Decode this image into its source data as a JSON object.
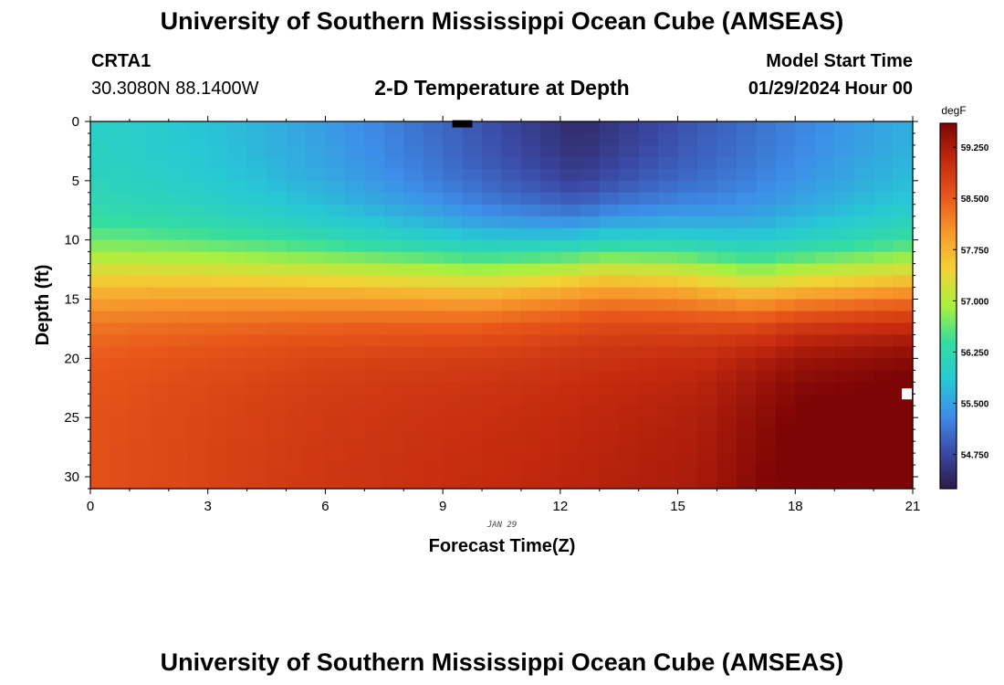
{
  "page": {
    "top_title": "University of Southern Mississippi Ocean Cube (AMSEAS)",
    "bottom_title": "University of Southern Mississippi Ocean Cube (AMSEAS)",
    "station_id": "CRTA1",
    "station_coords": "30.3080N  88.1400W",
    "model_start_label": "Model Start Time",
    "model_start_value": "01/29/2024 Hour 00"
  },
  "chart_data": {
    "type": "heatmap",
    "title": "2-D Temperature at Depth",
    "xlabel": "Forecast Time(Z)",
    "ylabel": "Depth (ft)",
    "xlim": [
      0,
      21
    ],
    "ylim": [
      0,
      31
    ],
    "x_ticks": [
      0,
      3,
      6,
      9,
      12,
      15,
      18,
      21
    ],
    "y_ticks": [
      0,
      5,
      10,
      15,
      20,
      25,
      30
    ],
    "date_label": "JAN 29",
    "colorbar": {
      "unit": "degF",
      "range": [
        54.25,
        59.6
      ],
      "ticks": [
        "59.250",
        "58.500",
        "57.750",
        "57.000",
        "56.250",
        "55.500",
        "54.750"
      ],
      "colors": [
        "#2a1a48",
        "#3b4aa6",
        "#3d8ee8",
        "#27c9d4",
        "#34dda0",
        "#a8f040",
        "#f2d236",
        "#f79a2c",
        "#e8561a",
        "#c2290e",
        "#7e0505"
      ]
    },
    "grid": {
      "columns": 42,
      "rows": 31,
      "x_step_hours": 0.5,
      "y_step_ft": 1
    },
    "temperature_profile": {
      "start_surface_degF": 56.0,
      "cold_core_degF": 54.4,
      "cold_core_time_hours": 12.5,
      "end_surface_degF": 55.6,
      "thermocline_depth_ft": [
        [
          0,
          12.6
        ],
        [
          10,
          12.6
        ],
        [
          13,
          11.6
        ],
        [
          15,
          12.2
        ],
        [
          17,
          13.6
        ],
        [
          21,
          13.6
        ]
      ],
      "bottom_temp_degF": [
        [
          0,
          58.6
        ],
        [
          6,
          58.8
        ],
        [
          12,
          58.9
        ],
        [
          15.5,
          59.0
        ],
        [
          18,
          59.4
        ],
        [
          21,
          59.5
        ]
      ]
    },
    "markers": [
      {
        "name": "surface-marker",
        "x_hours": 9.5,
        "depth_ft": 0.2,
        "color": "#000000"
      },
      {
        "name": "deep-marker",
        "x_hours": 20.85,
        "depth_ft": 23,
        "color": "#ffffff"
      }
    ]
  }
}
